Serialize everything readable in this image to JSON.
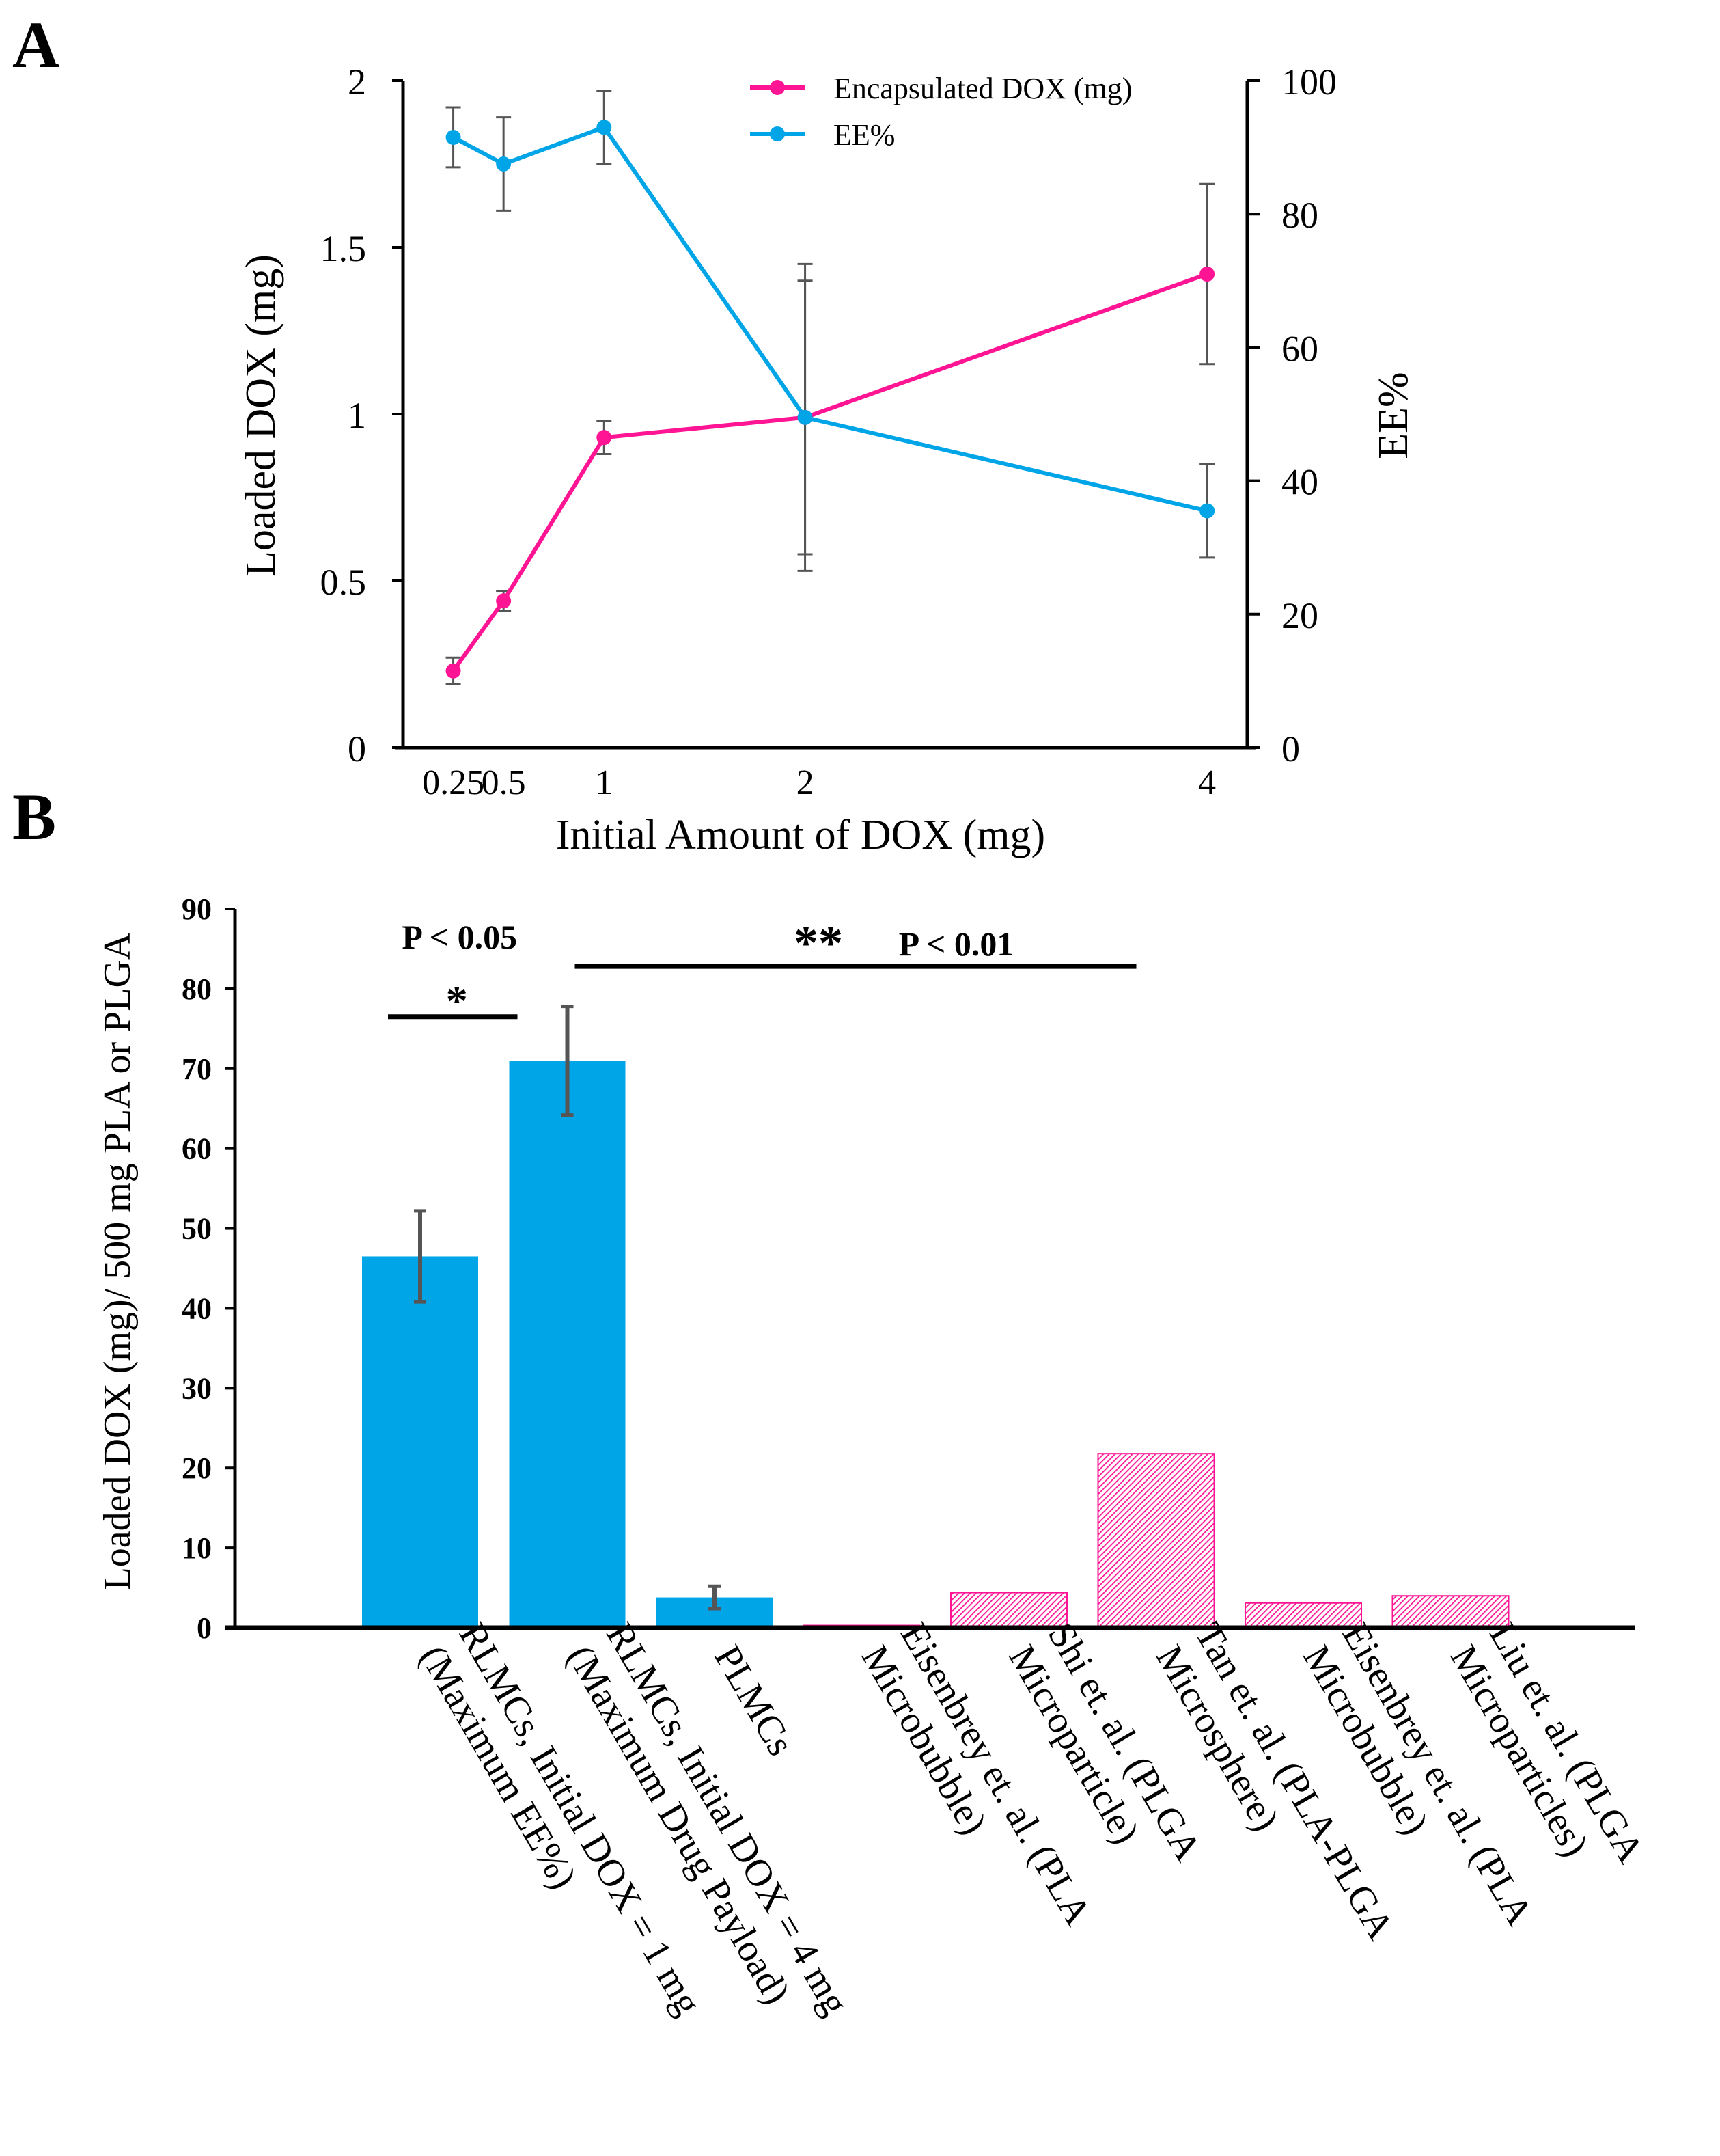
{
  "panels": {
    "a_label": "A",
    "b_label": "B"
  },
  "colors": {
    "pink": "#ff1493",
    "blue": "#00a5e8",
    "axis": "#000000",
    "errorbar": "#555555"
  },
  "chart_data": [
    {
      "type": "line",
      "panel": "A",
      "title": "",
      "xlabel": "Initial Amount of DOX (mg)",
      "ylabel": "Loaded DOX (mg)",
      "y2label": "EE%",
      "x": [
        0.25,
        0.5,
        1,
        2,
        4
      ],
      "x_tick_labels": [
        "0.25",
        "0.5",
        "1",
        "2",
        "4"
      ],
      "xlim": [
        0,
        4.2
      ],
      "ylim": [
        0,
        2
      ],
      "y_ticks": [
        "0",
        "0.5",
        "1",
        "1.5",
        "2"
      ],
      "y2lim": [
        0,
        100
      ],
      "y2_ticks": [
        "0",
        "20",
        "40",
        "60",
        "80",
        "100"
      ],
      "legend_position": "top-right",
      "series": [
        {
          "name": "Encapsulated DOX (mg)",
          "axis": "left",
          "color": "#ff1493",
          "values": [
            0.23,
            0.44,
            0.93,
            0.99,
            1.42
          ],
          "errors": [
            0.04,
            0.03,
            0.05,
            0.41,
            0.27
          ]
        },
        {
          "name": "EE%",
          "axis": "right",
          "color": "#00a5e8",
          "values": [
            91.5,
            87.5,
            93,
            49.5,
            35.5
          ],
          "errors": [
            4.5,
            7,
            5.5,
            23,
            7
          ]
        }
      ]
    },
    {
      "type": "bar",
      "panel": "B",
      "title": "",
      "xlabel": "",
      "ylabel": "Loaded DOX (mg)/ 500 mg PLA or PLGA",
      "ylim": [
        0,
        90
      ],
      "y_ticks": [
        "0",
        "10",
        "20",
        "30",
        "40",
        "50",
        "60",
        "70",
        "80",
        "90"
      ],
      "categories": [
        [
          "RLMCs, Initial DOX = 1 mg",
          "(Maximum EE%)"
        ],
        [
          "RLMCs, Initial DOX = 4 mg",
          "(Maximum Drug Payload)"
        ],
        [
          "PLMCs"
        ],
        [
          "Eisenbrey et. al.  (PLA",
          "Microbubble)"
        ],
        [
          "Shi et. al.  (PLGA",
          "Microparticle)"
        ],
        [
          "Tan et. al.  (PLA-PLGA",
          "Microsphere)"
        ],
        [
          "Eisenbrey et. al.  (PLA",
          "Microbubble)"
        ],
        [
          "Liu et. al. (PLGA",
          "Microparticles)"
        ]
      ],
      "values": [
        46.5,
        71,
        3.8,
        0.3,
        4.4,
        21.8,
        3.1,
        4.0
      ],
      "errors": [
        5.7,
        6.8,
        1.4,
        null,
        null,
        null,
        null,
        null
      ],
      "styles": [
        "solid",
        "solid",
        "solid",
        "hatched",
        "hatched",
        "hatched",
        "hatched",
        "hatched"
      ],
      "annotations": [
        {
          "from": 0,
          "to": 1,
          "level": 76.5,
          "text": "P < 0.05",
          "stars": "*"
        },
        {
          "from": 1,
          "to": 5,
          "level": 82.8,
          "text": "P < 0.01",
          "stars": "**"
        }
      ]
    }
  ]
}
